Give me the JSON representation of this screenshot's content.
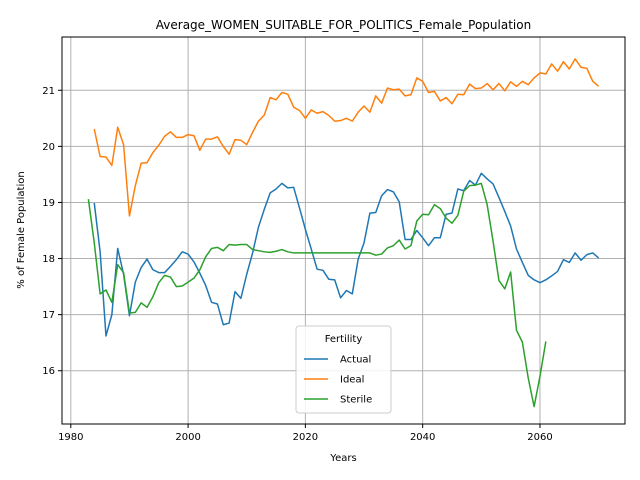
{
  "chart_data": {
    "type": "line",
    "title": "Average_WOMEN_SUITABLE_FOR_POLITICS_Female_Population",
    "xlabel": "Years",
    "ylabel": "% of Female Population",
    "xlim": [
      1978.5,
      2074.5
    ],
    "ylim": [
      15.05,
      21.95
    ],
    "xticks": [
      1980,
      2000,
      2020,
      2040,
      2060
    ],
    "yticks": [
      16,
      17,
      18,
      19,
      20,
      21
    ],
    "grid": true,
    "legend": {
      "title": "Fertility",
      "position": "lower-center"
    },
    "series": [
      {
        "name": "Actual",
        "color": "#1f77b4",
        "x": [
          1984,
          1985,
          1986,
          1987,
          1988,
          1989,
          1990,
          1991,
          1992,
          1993,
          1994,
          1995,
          1996,
          1997,
          1998,
          1999,
          2000,
          2001,
          2002,
          2003,
          2004,
          2005,
          2006,
          2007,
          2008,
          2009,
          2010,
          2011,
          2012,
          2013,
          2014,
          2015,
          2016,
          2017,
          2018,
          2019,
          2020,
          2021,
          2022,
          2023,
          2024,
          2025,
          2026,
          2027,
          2028,
          2029,
          2030,
          2031,
          2032,
          2033,
          2034,
          2035,
          2036,
          2037,
          2038,
          2039,
          2040,
          2041,
          2042,
          2043,
          2044,
          2045,
          2046,
          2047,
          2048,
          2049,
          2050,
          2051,
          2052,
          2053,
          2054,
          2055,
          2056,
          2057,
          2058,
          2059,
          2060,
          2061,
          2062,
          2063,
          2064,
          2065,
          2066,
          2067,
          2068,
          2069,
          2070
        ],
        "values": [
          18.99,
          18.12,
          16.62,
          17.0,
          18.18,
          17.72,
          16.98,
          17.58,
          17.84,
          17.99,
          17.8,
          17.75,
          17.75,
          17.86,
          17.98,
          18.12,
          18.08,
          17.94,
          17.74,
          17.52,
          17.22,
          17.19,
          16.82,
          16.85,
          17.41,
          17.29,
          17.72,
          18.1,
          18.56,
          18.88,
          19.17,
          19.24,
          19.34,
          19.26,
          19.27,
          18.9,
          18.52,
          18.17,
          17.81,
          17.79,
          17.63,
          17.62,
          17.3,
          17.43,
          17.37,
          17.99,
          18.28,
          18.81,
          18.82,
          19.12,
          19.23,
          19.19,
          19.01,
          18.34,
          18.34,
          18.5,
          18.37,
          18.23,
          18.37,
          18.37,
          18.79,
          18.81,
          19.24,
          19.21,
          19.39,
          19.31,
          19.52,
          19.42,
          19.33,
          19.09,
          18.84,
          18.58,
          18.17,
          17.93,
          17.7,
          17.62,
          17.57,
          17.62,
          17.69,
          17.77,
          17.98,
          17.93,
          18.1,
          17.97,
          18.07,
          18.1,
          18.01
        ]
      },
      {
        "name": "Ideal",
        "color": "#ff7f0e",
        "x": [
          1984,
          1985,
          1986,
          1987,
          1988,
          1989,
          1990,
          1991,
          1992,
          1993,
          1994,
          1995,
          1996,
          1997,
          1998,
          1999,
          2000,
          2001,
          2002,
          2003,
          2004,
          2005,
          2006,
          2007,
          2008,
          2009,
          2010,
          2011,
          2012,
          2013,
          2014,
          2015,
          2016,
          2017,
          2018,
          2019,
          2020,
          2021,
          2022,
          2023,
          2024,
          2025,
          2026,
          2027,
          2028,
          2029,
          2030,
          2031,
          2032,
          2033,
          2034,
          2035,
          2036,
          2037,
          2038,
          2039,
          2040,
          2041,
          2042,
          2043,
          2044,
          2045,
          2046,
          2047,
          2048,
          2049,
          2050,
          2051,
          2052,
          2053,
          2054,
          2055,
          2056,
          2057,
          2058,
          2059,
          2060,
          2061,
          2062,
          2063,
          2064,
          2065,
          2066,
          2067,
          2068,
          2069,
          2070
        ],
        "values": [
          20.31,
          19.82,
          19.81,
          19.66,
          20.34,
          20.03,
          18.76,
          19.3,
          19.7,
          19.71,
          19.89,
          20.02,
          20.18,
          20.26,
          20.16,
          20.16,
          20.21,
          20.19,
          19.93,
          20.13,
          20.13,
          20.17,
          20.0,
          19.86,
          20.12,
          20.11,
          20.03,
          20.25,
          20.45,
          20.56,
          20.87,
          20.83,
          20.96,
          20.93,
          20.7,
          20.64,
          20.5,
          20.65,
          20.59,
          20.62,
          20.55,
          20.45,
          20.46,
          20.5,
          20.45,
          20.61,
          20.72,
          20.61,
          20.9,
          20.77,
          21.04,
          21.01,
          21.02,
          20.9,
          20.92,
          21.22,
          21.16,
          20.96,
          20.98,
          20.81,
          20.87,
          20.76,
          20.93,
          20.92,
          21.11,
          21.03,
          21.04,
          21.12,
          21.01,
          21.12,
          20.99,
          21.15,
          21.07,
          21.16,
          21.1,
          21.22,
          21.31,
          21.29,
          21.47,
          21.34,
          21.51,
          21.38,
          21.56,
          21.41,
          21.39,
          21.16,
          21.07
        ]
      },
      {
        "name": "Sterile",
        "color": "#2ca02c",
        "x": [
          1983,
          1984,
          1985,
          1986,
          1987,
          1988,
          1989,
          1990,
          1991,
          1992,
          1993,
          1994,
          1995,
          1996,
          1997,
          1998,
          1999,
          2000,
          2001,
          2002,
          2003,
          2004,
          2005,
          2006,
          2007,
          2008,
          2009,
          2010,
          2011,
          2012,
          2013,
          2014,
          2015,
          2016,
          2017,
          2018,
          2019,
          2020,
          2021,
          2022,
          2023,
          2024,
          2025,
          2026,
          2027,
          2028,
          2029,
          2030,
          2031,
          2032,
          2033,
          2034,
          2035,
          2036,
          2037,
          2038,
          2039,
          2040,
          2041,
          2042,
          2043,
          2044,
          2045,
          2046,
          2047,
          2048,
          2049,
          2050,
          2051,
          2052,
          2053,
          2054,
          2055,
          2056,
          2057,
          2058,
          2059,
          2060,
          2061
        ],
        "values": [
          19.06,
          18.28,
          17.37,
          17.44,
          17.22,
          17.89,
          17.75,
          17.03,
          17.04,
          17.21,
          17.13,
          17.32,
          17.57,
          17.7,
          17.67,
          17.5,
          17.51,
          17.58,
          17.65,
          17.8,
          18.03,
          18.18,
          18.2,
          18.14,
          18.25,
          18.24,
          18.25,
          18.25,
          18.16,
          18.14,
          18.12,
          18.11,
          18.13,
          18.16,
          18.12,
          18.1,
          18.1,
          18.1,
          18.1,
          18.1,
          18.1,
          18.1,
          18.1,
          18.1,
          18.1,
          18.1,
          18.1,
          18.1,
          18.1,
          18.06,
          18.08,
          18.19,
          18.23,
          18.33,
          18.17,
          18.23,
          18.67,
          18.79,
          18.78,
          18.96,
          18.89,
          18.72,
          18.63,
          18.77,
          19.2,
          19.3,
          19.31,
          19.34,
          18.96,
          18.31,
          17.61,
          17.46,
          17.76,
          16.72,
          16.51,
          15.87,
          15.36,
          15.9,
          16.52
        ]
      }
    ]
  }
}
